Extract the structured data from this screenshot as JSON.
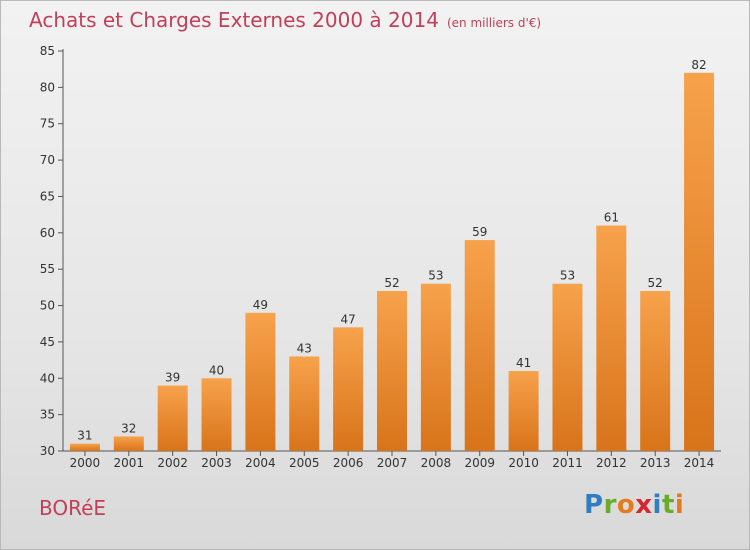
{
  "title": "Achats et Charges Externes 2000 à 2014",
  "unit_note": "(en milliers d'€)",
  "commune": "BORéE",
  "logo": {
    "text": "Proxiti",
    "letters": [
      {
        "ch": "P",
        "color": "#2f7fc0"
      },
      {
        "ch": "r",
        "color": "#6aab2c"
      },
      {
        "ch": "o",
        "color": "#e47b1f"
      },
      {
        "ch": "x",
        "color": "#d6262f"
      },
      {
        "ch": "i",
        "color": "#2f7fc0"
      },
      {
        "ch": "t",
        "color": "#6aab2c"
      },
      {
        "ch": "i",
        "color": "#e47b1f"
      }
    ]
  },
  "chart_data": {
    "type": "bar",
    "title": "Achats et Charges Externes 2000 à 2014",
    "categories": [
      "2000",
      "2001",
      "2002",
      "2003",
      "2004",
      "2005",
      "2006",
      "2007",
      "2008",
      "2009",
      "2010",
      "2011",
      "2012",
      "2013",
      "2014"
    ],
    "values": [
      31,
      32,
      39,
      40,
      49,
      43,
      47,
      52,
      53,
      59,
      41,
      53,
      61,
      52,
      82
    ],
    "ylim": [
      30,
      85
    ],
    "yticks": [
      30,
      35,
      40,
      45,
      50,
      55,
      60,
      65,
      70,
      75,
      80,
      85
    ],
    "grid": false,
    "bar_color_top": "#f7a24c",
    "bar_color_bottom": "#d8741a"
  }
}
